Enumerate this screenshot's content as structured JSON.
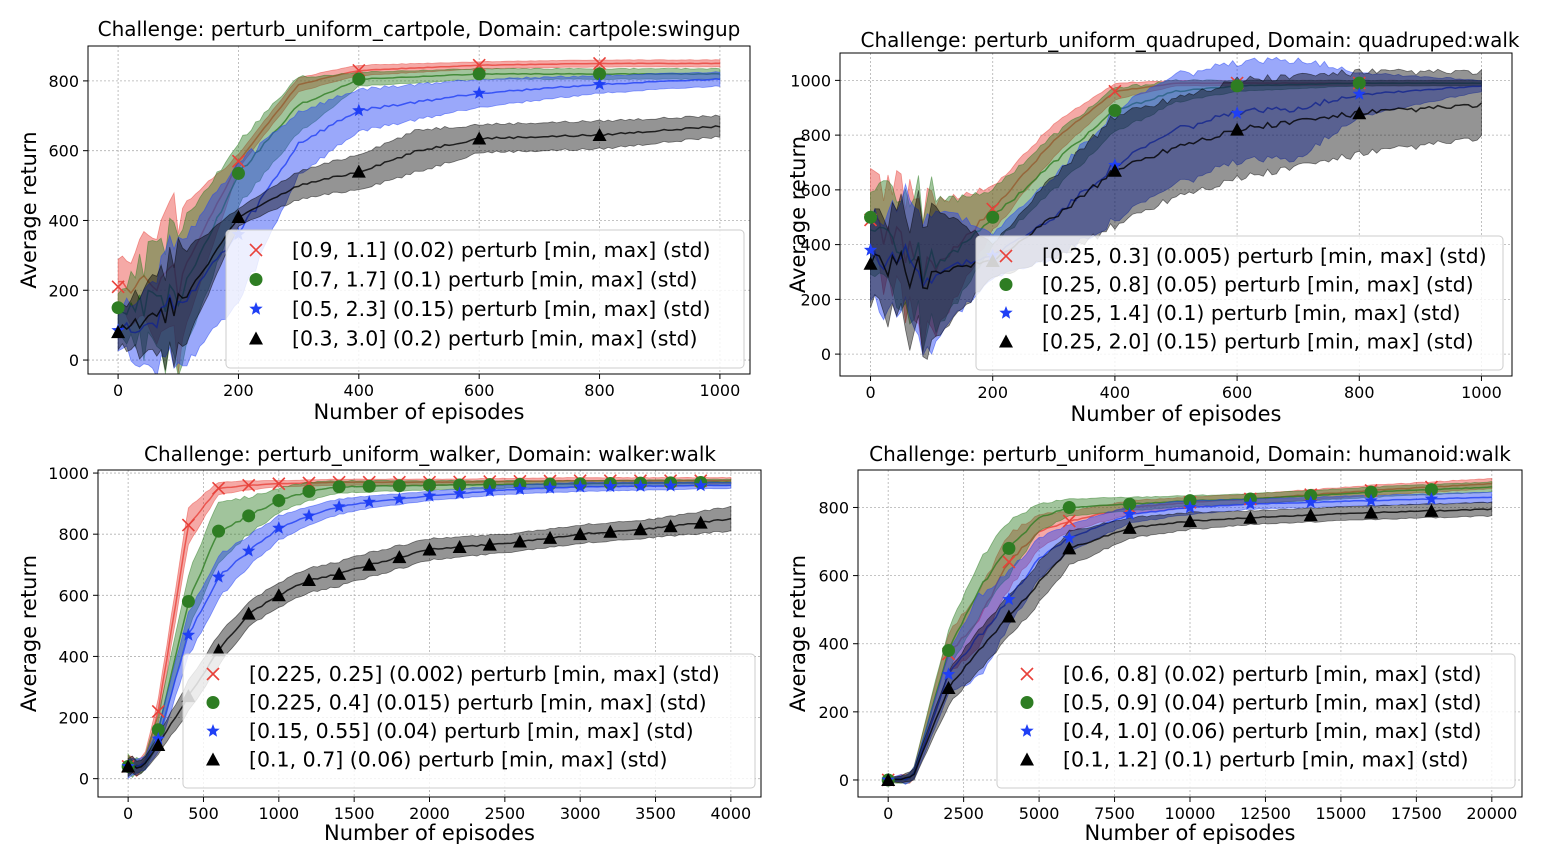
{
  "colors": {
    "red": "#e8413a",
    "green": "#2e7d23",
    "blue": "#1f3ff5",
    "black": "#000000"
  },
  "chart_data": [
    {
      "type": "line",
      "title": "Challenge: perturb_uniform_cartpole, Domain: cartpole:swingup",
      "xlabel": "Number of episodes",
      "ylabel": "Average return",
      "xlim": [
        -50,
        1050
      ],
      "ylim": [
        -40,
        900
      ],
      "xticks": [
        0,
        200,
        400,
        600,
        800,
        1000
      ],
      "yticks": [
        0,
        200,
        400,
        600,
        800
      ],
      "grid": true,
      "legend_position": "lower-right",
      "series": [
        {
          "name": "[0.9, 1.1] (0.02) perturb [min, max] (std)",
          "color": "red",
          "marker": "x",
          "x": [
            0,
            100,
            200,
            300,
            400,
            600,
            800,
            1000
          ],
          "y": [
            210,
            220,
            570,
            790,
            830,
            845,
            850,
            850
          ],
          "band": [
            60,
            200,
            20,
            20,
            15,
            10,
            10,
            10
          ]
        },
        {
          "name": "[0.7, 1.7] (0.1) perturb [min, max] (std)",
          "color": "green",
          "marker": "o",
          "x": [
            0,
            100,
            200,
            300,
            400,
            600,
            800,
            1000
          ],
          "y": [
            150,
            170,
            535,
            730,
            805,
            820,
            820,
            820
          ],
          "band": [
            60,
            200,
            90,
            80,
            20,
            15,
            15,
            15
          ]
        },
        {
          "name": "[0.5, 2.3] (0.15) perturb [min, max] (std)",
          "color": "blue",
          "marker": "*",
          "x": [
            0,
            100,
            200,
            300,
            400,
            600,
            800,
            1000
          ],
          "y": [
            85,
            150,
            360,
            620,
            715,
            765,
            790,
            805
          ],
          "band": [
            50,
            180,
            200,
            90,
            60,
            40,
            25,
            20
          ]
        },
        {
          "name": "[0.3, 3.0] (0.2) perturb [min, max] (std)",
          "color": "black",
          "marker": "^",
          "x": [
            0,
            100,
            200,
            300,
            400,
            500,
            600,
            800,
            1000
          ],
          "y": [
            80,
            150,
            410,
            500,
            540,
            600,
            635,
            645,
            670
          ],
          "band": [
            50,
            150,
            25,
            40,
            50,
            60,
            40,
            40,
            30
          ]
        }
      ]
    },
    {
      "type": "line",
      "title": "Challenge: perturb_uniform_quadruped, Domain: quadruped:walk",
      "xlabel": "Number of episodes",
      "ylabel": "Average return",
      "xlim": [
        -50,
        1050
      ],
      "ylim": [
        -80,
        1100
      ],
      "xticks": [
        0,
        200,
        400,
        600,
        800,
        1000
      ],
      "yticks": [
        0,
        200,
        400,
        600,
        800,
        1000
      ],
      "grid": true,
      "legend_position": "lower-right",
      "series": [
        {
          "name": "[0.25, 0.3] (0.005) perturb [min, max] (std)",
          "color": "red",
          "marker": "x",
          "x": [
            0,
            100,
            200,
            300,
            400,
            500,
            600,
            800,
            1000
          ],
          "y": [
            490,
            300,
            530,
            780,
            960,
            990,
            990,
            990,
            990
          ],
          "band": [
            150,
            250,
            80,
            60,
            30,
            10,
            10,
            10,
            10
          ]
        },
        {
          "name": "[0.25, 0.8] (0.05) perturb [min, max] (std)",
          "color": "green",
          "marker": "o",
          "x": [
            0,
            100,
            200,
            300,
            400,
            500,
            600,
            800,
            1000
          ],
          "y": [
            500,
            300,
            500,
            700,
            890,
            960,
            980,
            990,
            990
          ],
          "band": [
            150,
            250,
            100,
            100,
            80,
            40,
            20,
            10,
            10
          ]
        },
        {
          "name": "[0.25, 1.4] (0.1) perturb [min, max] (std)",
          "color": "blue",
          "marker": "*",
          "x": [
            0,
            100,
            200,
            300,
            400,
            500,
            600,
            700,
            800,
            1000
          ],
          "y": [
            380,
            300,
            360,
            500,
            690,
            820,
            880,
            900,
            950,
            980
          ],
          "band": [
            150,
            250,
            80,
            150,
            200,
            200,
            180,
            180,
            80,
            20
          ]
        },
        {
          "name": "[0.25, 2.0] (0.15) perturb [min, max] (std)",
          "color": "black",
          "marker": "^",
          "x": [
            0,
            100,
            200,
            300,
            400,
            500,
            600,
            800,
            1000
          ],
          "y": [
            330,
            300,
            340,
            500,
            670,
            760,
            820,
            880,
            910
          ],
          "band": [
            150,
            250,
            60,
            150,
            200,
            180,
            180,
            150,
            120
          ]
        }
      ]
    },
    {
      "type": "line",
      "title": "Challenge: perturb_uniform_walker, Domain: walker:walk",
      "xlabel": "Number of episodes",
      "ylabel": "Average return",
      "xlim": [
        -200,
        4200
      ],
      "ylim": [
        -60,
        1010
      ],
      "xticks": [
        0,
        500,
        1000,
        1500,
        2000,
        2500,
        3000,
        3500,
        4000
      ],
      "yticks": [
        0,
        200,
        400,
        600,
        800,
        1000
      ],
      "grid": true,
      "legend_position": "lower-right",
      "series": [
        {
          "name": "[0.225, 0.25] (0.002) perturb [min, max] (std)",
          "color": "red",
          "marker": "x",
          "x": [
            0,
            100,
            200,
            400,
            600,
            800,
            1000,
            1400,
            2000,
            3000,
            4000
          ],
          "y": [
            40,
            40,
            220,
            830,
            950,
            960,
            965,
            970,
            970,
            975,
            975
          ],
          "band": [
            30,
            20,
            40,
            60,
            20,
            15,
            10,
            10,
            10,
            10,
            10
          ]
        },
        {
          "name": "[0.225, 0.4] (0.015) perturb [min, max] (std)",
          "color": "green",
          "marker": "o",
          "x": [
            0,
            100,
            200,
            400,
            600,
            800,
            1000,
            1200,
            1400,
            2000,
            3000,
            4000
          ],
          "y": [
            40,
            40,
            160,
            580,
            810,
            860,
            910,
            940,
            955,
            960,
            965,
            970
          ],
          "band": [
            30,
            20,
            50,
            90,
            100,
            60,
            40,
            30,
            20,
            15,
            10,
            10
          ]
        },
        {
          "name": "[0.15, 0.55] (0.04) perturb [min, max] (std)",
          "color": "blue",
          "marker": "*",
          "x": [
            0,
            100,
            200,
            400,
            600,
            800,
            1000,
            1200,
            1400,
            1600,
            2000,
            2500,
            3000,
            4000
          ],
          "y": [
            40,
            40,
            130,
            470,
            660,
            745,
            820,
            860,
            890,
            905,
            925,
            945,
            955,
            960
          ],
          "band": [
            30,
            20,
            40,
            70,
            70,
            50,
            40,
            30,
            25,
            20,
            15,
            15,
            15,
            10
          ]
        },
        {
          "name": "[0.1, 0.7] (0.06) perturb [min, max] (std)",
          "color": "black",
          "marker": "^",
          "x": [
            0,
            100,
            200,
            400,
            600,
            800,
            1000,
            1200,
            1400,
            1600,
            2000,
            2500,
            3000,
            3500,
            4000
          ],
          "y": [
            40,
            40,
            110,
            270,
            420,
            540,
            600,
            650,
            670,
            700,
            750,
            770,
            800,
            820,
            850
          ],
          "band": [
            30,
            20,
            30,
            50,
            50,
            40,
            40,
            40,
            40,
            40,
            35,
            30,
            30,
            30,
            40
          ]
        }
      ]
    },
    {
      "type": "line",
      "title": "Challenge: perturb_uniform_humanoid, Domain: humanoid:walk",
      "xlabel": "Number of episodes",
      "ylabel": "Average return",
      "xlim": [
        -1000,
        21000
      ],
      "ylim": [
        -50,
        910
      ],
      "xticks": [
        0,
        2500,
        5000,
        7500,
        10000,
        12500,
        15000,
        17500,
        20000
      ],
      "yticks": [
        0,
        200,
        400,
        600,
        800
      ],
      "grid": true,
      "legend_position": "lower-right",
      "series": [
        {
          "name": "[0.6, 0.8] (0.02) perturb [min, max] (std)",
          "color": "red",
          "marker": "x",
          "x": [
            0,
            800,
            2000,
            3000,
            4000,
            5000,
            6000,
            8000,
            10000,
            12000,
            16000,
            20000
          ],
          "y": [
            0,
            5,
            370,
            470,
            640,
            730,
            760,
            800,
            815,
            825,
            850,
            870
          ],
          "band": [
            5,
            15,
            60,
            80,
            80,
            50,
            30,
            20,
            15,
            15,
            15,
            15
          ]
        },
        {
          "name": "[0.5, 0.9] (0.04) perturb [min, max] (std)",
          "color": "green",
          "marker": "o",
          "x": [
            0,
            800,
            2000,
            3000,
            4000,
            5000,
            6000,
            8000,
            10000,
            12000,
            16000,
            20000
          ],
          "y": [
            0,
            5,
            380,
            560,
            680,
            770,
            800,
            810,
            820,
            825,
            845,
            860
          ],
          "band": [
            5,
            15,
            60,
            80,
            80,
            40,
            25,
            20,
            15,
            15,
            15,
            15
          ]
        },
        {
          "name": "[0.4, 1.0] (0.06) perturb [min, max] (std)",
          "color": "blue",
          "marker": "*",
          "x": [
            0,
            800,
            2000,
            3000,
            4000,
            5000,
            6000,
            8000,
            10000,
            12000,
            16000,
            20000
          ],
          "y": [
            0,
            5,
            310,
            420,
            530,
            650,
            710,
            780,
            800,
            810,
            820,
            830
          ],
          "band": [
            5,
            15,
            60,
            120,
            80,
            60,
            40,
            25,
            20,
            15,
            15,
            15
          ]
        },
        {
          "name": "[0.1, 1.2] (0.1) perturb [min, max] (std)",
          "color": "black",
          "marker": "^",
          "x": [
            0,
            800,
            2000,
            3000,
            4000,
            5000,
            6000,
            8000,
            10000,
            12000,
            16000,
            20000
          ],
          "y": [
            0,
            5,
            270,
            380,
            480,
            580,
            680,
            740,
            760,
            770,
            785,
            795
          ],
          "band": [
            5,
            15,
            50,
            60,
            60,
            60,
            50,
            30,
            25,
            20,
            20,
            20
          ]
        }
      ]
    }
  ]
}
